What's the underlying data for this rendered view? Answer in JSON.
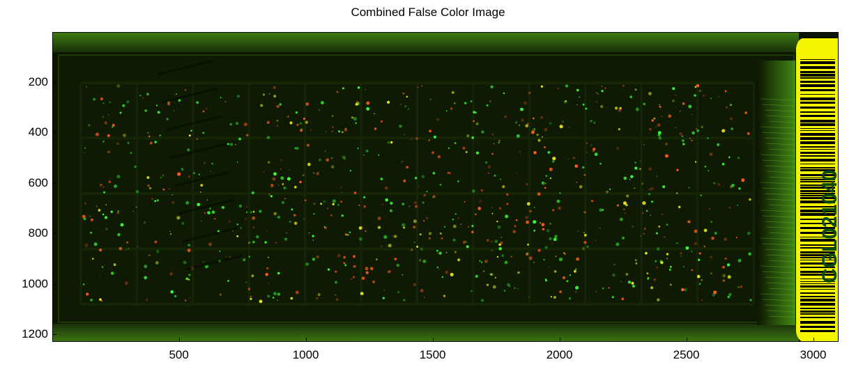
{
  "figure": {
    "title": "Combined False Color Image"
  },
  "image": {
    "description_role": "two-channel microarray scan (red/green false color) with barcode label",
    "label_text": "CGL021040",
    "colors": {
      "background": "#0b1500",
      "frame": "#2a5a08",
      "label": "#f6f500",
      "green_spot": "#3cff3c",
      "red_spot": "#ff5a1e",
      "yellow_spot": "#e6e61e"
    }
  },
  "axes": {
    "x": {
      "range": [
        1,
        3100
      ],
      "ticks": [
        "500",
        "1000",
        "1500",
        "2000",
        "2500",
        "3000"
      ],
      "tick_values": [
        500,
        1000,
        1500,
        2000,
        2500,
        3000
      ]
    },
    "y": {
      "range": [
        1,
        1230
      ],
      "ticks": [
        "200",
        "400",
        "600",
        "800",
        "1000",
        "1200"
      ],
      "tick_values": [
        200,
        400,
        600,
        800,
        1000,
        1200
      ],
      "direction": "reversed"
    }
  }
}
